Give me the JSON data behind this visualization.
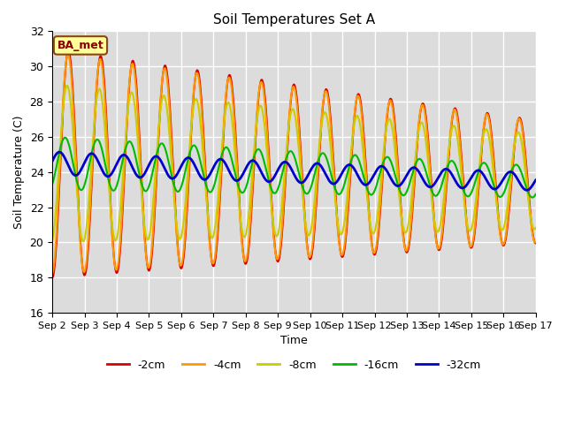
{
  "title": "Soil Temperatures Set A",
  "xlabel": "Time",
  "ylabel": "Soil Temperature (C)",
  "ylim": [
    16,
    32
  ],
  "xlim_days": [
    0,
    15
  ],
  "x_tick_labels": [
    "Sep 2",
    "Sep 3",
    "Sep 4",
    "Sep 5",
    "Sep 6",
    "Sep 7",
    "Sep 8",
    "Sep 9",
    "Sep 10",
    "Sep 11",
    "Sep 12",
    "Sep 13",
    "Sep 14",
    "Sep 15",
    "Sep 16",
    "Sep 17"
  ],
  "series": [
    {
      "label": "-2cm",
      "color": "#DD0000",
      "lw": 1.5
    },
    {
      "label": "-4cm",
      "color": "#FF9900",
      "lw": 1.5
    },
    {
      "label": "-8cm",
      "color": "#CCCC00",
      "lw": 1.5
    },
    {
      "label": "-16cm",
      "color": "#00BB00",
      "lw": 1.5
    },
    {
      "label": "-32cm",
      "color": "#0000CC",
      "lw": 2.0
    }
  ],
  "annotation_text": "BA_met",
  "bg_color": "#DCDCDC",
  "fig_bg": "#FFFFFF",
  "grid_color": "#FFFFFF",
  "title_fontsize": 11,
  "tick_fontsize": 8
}
